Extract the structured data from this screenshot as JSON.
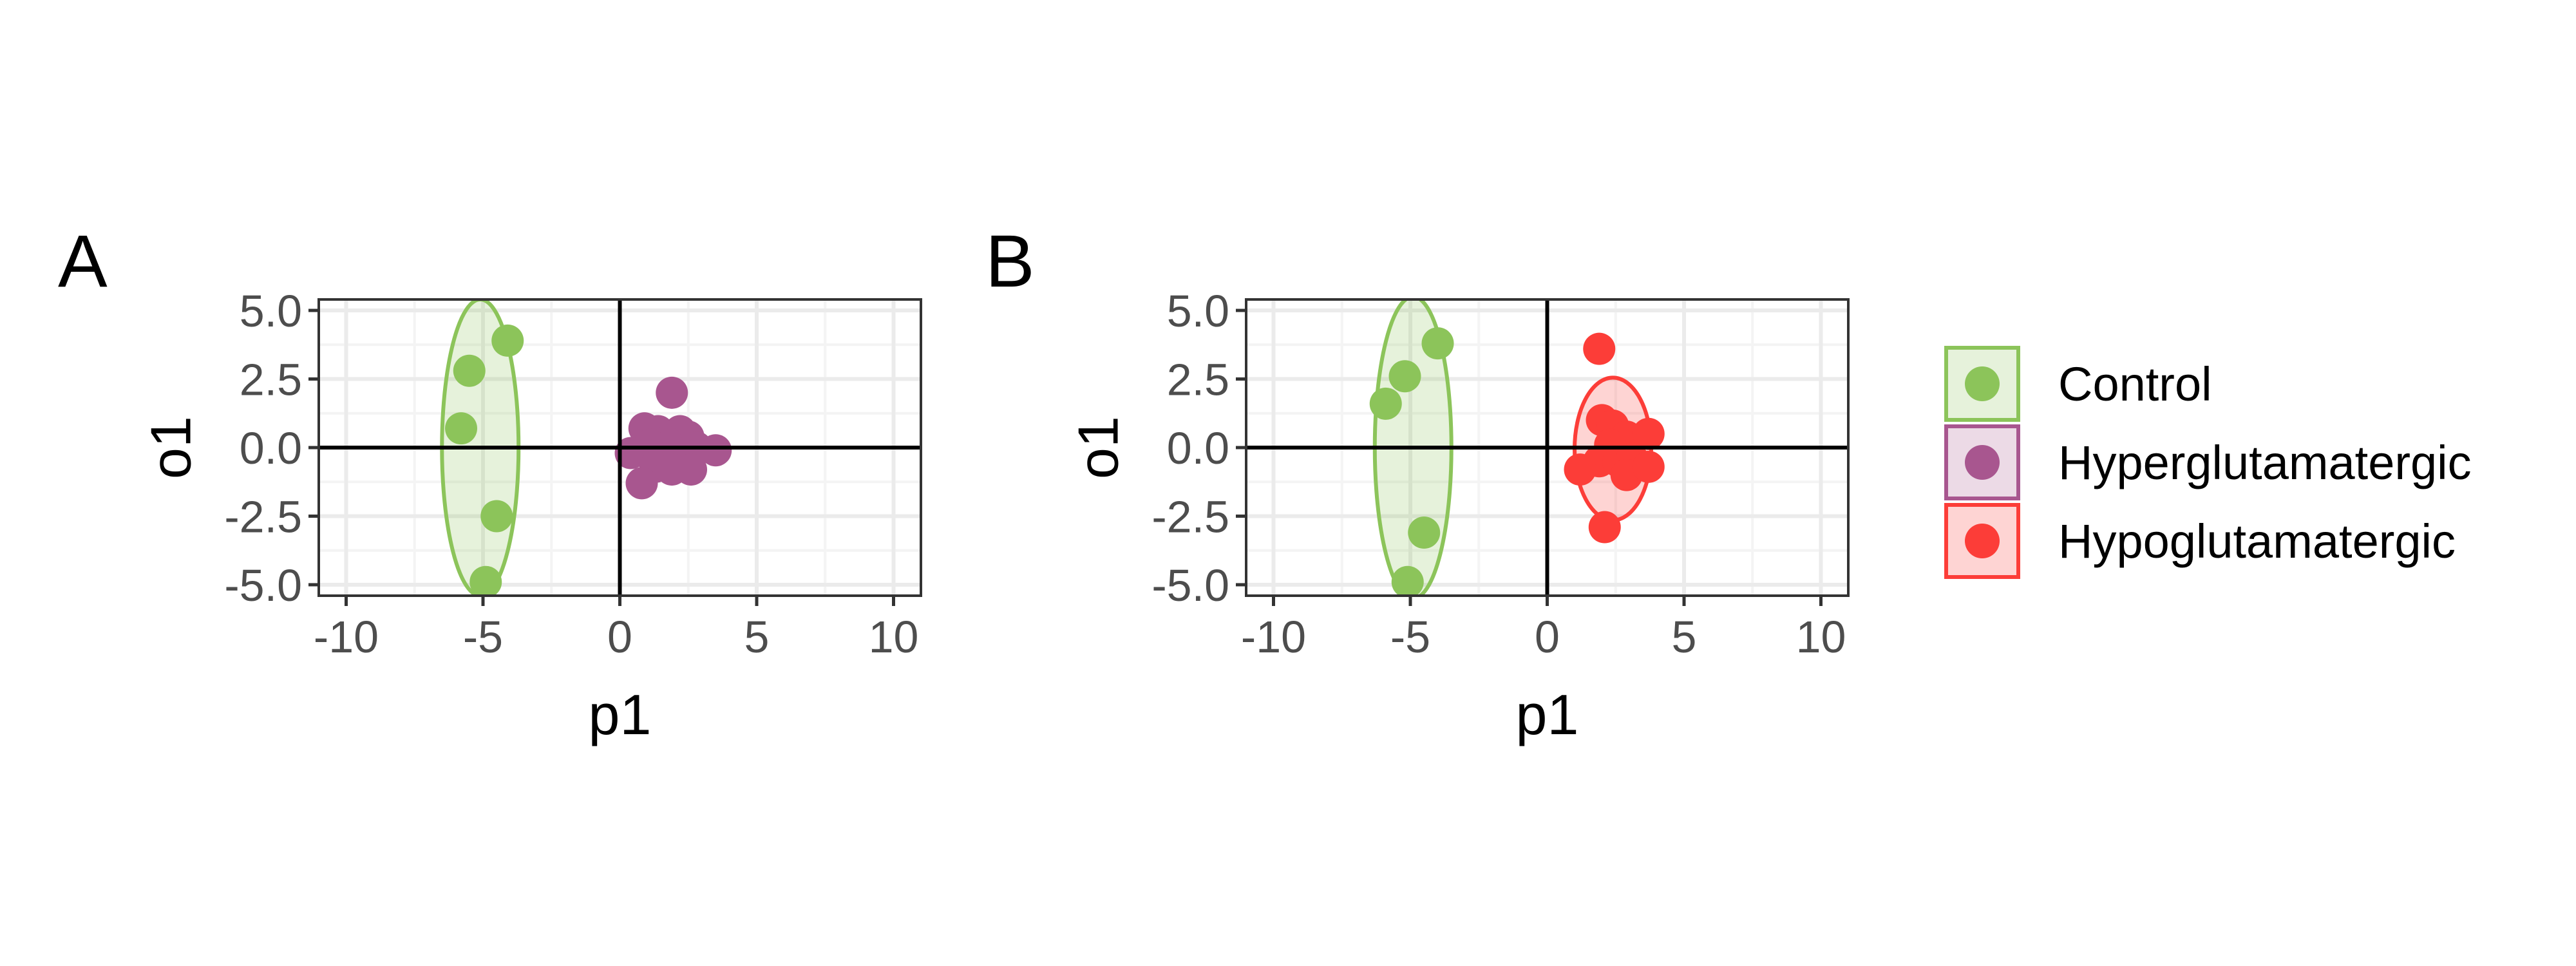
{
  "colors": {
    "Control": "#8cc45a",
    "Hyperglutamatergic": "#a8568f",
    "Hypoglutamatergic": "#fc3d38",
    "grid_major": "#ebebeb",
    "grid_minor": "#f4f4f4",
    "panel_border": "#333333"
  },
  "legend": {
    "entries": [
      "Control",
      "Hyperglutamatergic",
      "Hypoglutamatergic"
    ]
  },
  "chart_data": [
    {
      "type": "scatter",
      "tag": "A",
      "xlabel": "p1",
      "ylabel": "o1",
      "xlim": [
        -11,
        11
      ],
      "ylim": [
        -5.4,
        5.4
      ],
      "xticks": [
        "-10",
        "-5",
        "0",
        "5",
        "10"
      ],
      "xtick_values": [
        -10,
        -5,
        0,
        5,
        10
      ],
      "yticks": [
        "5.0",
        "2.5",
        "0.0",
        "-2.5",
        "-5.0"
      ],
      "ytick_values": [
        5.0,
        2.5,
        0.0,
        -2.5,
        -5.0
      ],
      "grid": true,
      "series": [
        {
          "name": "Control",
          "points": [
            [
              -4.1,
              3.9
            ],
            [
              -5.5,
              2.8
            ],
            [
              -5.8,
              0.7
            ],
            [
              -4.5,
              -2.5
            ],
            [
              -4.9,
              -4.9
            ]
          ],
          "ellipse": {
            "center": [
              -5.1,
              0.0
            ],
            "semi_x": 1.4,
            "semi_y": 5.4
          }
        },
        {
          "name": "Hyperglutamatergic",
          "points": [
            [
              1.9,
              2.0
            ],
            [
              0.9,
              0.7
            ],
            [
              1.4,
              0.6
            ],
            [
              2.2,
              0.6
            ],
            [
              2.5,
              0.4
            ],
            [
              1.7,
              0.2
            ],
            [
              1.1,
              0.1
            ],
            [
              2.8,
              0.0
            ],
            [
              0.4,
              -0.2
            ],
            [
              3.5,
              -0.1
            ],
            [
              1.2,
              -0.3
            ],
            [
              2.1,
              -0.4
            ],
            [
              1.6,
              -0.5
            ],
            [
              2.4,
              -0.6
            ],
            [
              1.3,
              -0.7
            ],
            [
              2.6,
              -0.8
            ],
            [
              1.9,
              -0.8
            ],
            [
              0.8,
              -1.3
            ]
          ],
          "ellipse": null
        }
      ]
    },
    {
      "type": "scatter",
      "tag": "B",
      "xlabel": "p1",
      "ylabel": "o1",
      "xlim": [
        -11,
        11
      ],
      "ylim": [
        -5.4,
        5.4
      ],
      "xticks": [
        "-10",
        "-5",
        "0",
        "5",
        "10"
      ],
      "xtick_values": [
        -10,
        -5,
        0,
        5,
        10
      ],
      "yticks": [
        "5.0",
        "2.5",
        "0.0",
        "-2.5",
        "-5.0"
      ],
      "ytick_values": [
        5.0,
        2.5,
        0.0,
        -2.5,
        -5.0
      ],
      "grid": true,
      "series": [
        {
          "name": "Control",
          "points": [
            [
              -4.0,
              3.8
            ],
            [
              -5.2,
              2.6
            ],
            [
              -5.9,
              1.6
            ],
            [
              -4.5,
              -3.1
            ],
            [
              -5.1,
              -4.9
            ]
          ],
          "ellipse": {
            "center": [
              -4.9,
              0.0
            ],
            "semi_x": 1.4,
            "semi_y": 5.5
          }
        },
        {
          "name": "Hypoglutamatergic",
          "points": [
            [
              1.9,
              3.6
            ],
            [
              2.0,
              1.0
            ],
            [
              2.4,
              0.8
            ],
            [
              2.9,
              0.4
            ],
            [
              3.7,
              0.5
            ],
            [
              2.3,
              0.1
            ],
            [
              1.9,
              -0.5
            ],
            [
              2.6,
              -0.5
            ],
            [
              3.1,
              -0.4
            ],
            [
              1.2,
              -0.8
            ],
            [
              2.9,
              -1.0
            ],
            [
              3.7,
              -0.7
            ],
            [
              2.1,
              -2.9
            ]
          ],
          "ellipse": {
            "center": [
              2.4,
              -0.05
            ],
            "semi_x": 1.4,
            "semi_y": 2.6
          }
        }
      ]
    }
  ]
}
